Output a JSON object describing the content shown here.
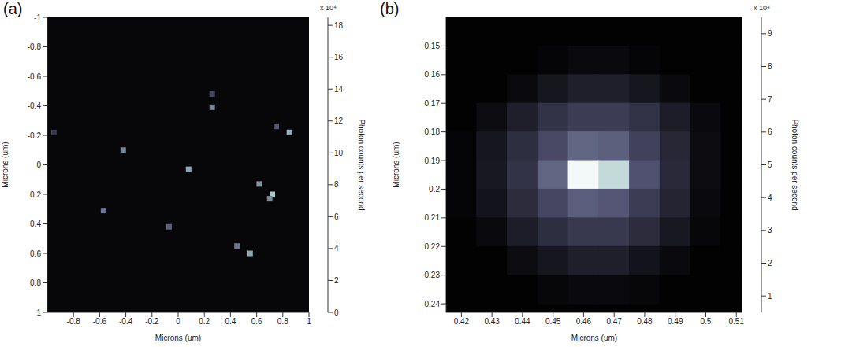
{
  "chart_data": [
    {
      "type": "heatmap",
      "panel": "(a)",
      "xlabel": "Microns (um)",
      "ylabel": "Microns (um)",
      "xlim": [
        -1,
        1
      ],
      "ylim": [
        -1,
        1
      ],
      "xticks": [
        -0.8,
        -0.6,
        -0.4,
        -0.2,
        0,
        0.2,
        0.4,
        0.6,
        0.8,
        1
      ],
      "yticks": [
        -1,
        -0.8,
        -0.6,
        -0.4,
        -0.2,
        0,
        0.2,
        0.4,
        0.6,
        0.8,
        1
      ],
      "grid": false,
      "background": 0.6,
      "spots": [
        {
          "x": -0.95,
          "y": -0.22,
          "value": 5
        },
        {
          "x": 0.26,
          "y": -0.48,
          "value": 6
        },
        {
          "x": 0.26,
          "y": -0.39,
          "value": 10
        },
        {
          "x": 0.75,
          "y": -0.26,
          "value": 7
        },
        {
          "x": 0.85,
          "y": -0.22,
          "value": 12
        },
        {
          "x": -0.42,
          "y": -0.1,
          "value": 10
        },
        {
          "x": 0.08,
          "y": 0.03,
          "value": 12
        },
        {
          "x": 0.62,
          "y": 0.13,
          "value": 11
        },
        {
          "x": 0.72,
          "y": 0.2,
          "value": 14
        },
        {
          "x": 0.7,
          "y": 0.23,
          "value": 10
        },
        {
          "x": -0.57,
          "y": 0.31,
          "value": 9
        },
        {
          "x": -0.07,
          "y": 0.42,
          "value": 8
        },
        {
          "x": 0.45,
          "y": 0.55,
          "value": 9
        },
        {
          "x": 0.55,
          "y": 0.6,
          "value": 12
        }
      ],
      "colorbar": {
        "range": [
          0,
          18.5
        ],
        "ticks": [
          0,
          2,
          4,
          6,
          8,
          10,
          12,
          14,
          16,
          18
        ],
        "label": "Photon counts per second",
        "multiplier": "x 10⁴"
      }
    },
    {
      "type": "heatmap",
      "panel": "(b)",
      "xlabel": "Microns (um)",
      "ylabel": "Microns (um)",
      "xlim": [
        0.415,
        0.512
      ],
      "ylim": [
        0.14,
        0.243
      ],
      "xticks": [
        0.42,
        0.43,
        0.44,
        0.45,
        0.46,
        0.47,
        0.48,
        0.49,
        0.5,
        0.51
      ],
      "yticks": [
        0.15,
        0.16,
        0.17,
        0.18,
        0.19,
        0.2,
        0.21,
        0.22,
        0.23,
        0.24
      ],
      "grid": false,
      "background": 0.6,
      "cells": {
        "x": [
          0.42,
          0.43,
          0.44,
          0.45,
          0.46,
          0.47,
          0.48,
          0.49,
          0.5,
          0.51
        ],
        "y": [
          0.145,
          0.155,
          0.165,
          0.175,
          0.185,
          0.195,
          0.205,
          0.215,
          0.225,
          0.235
        ],
        "values": [
          [
            0.6,
            0.6,
            0.6,
            0.6,
            0.6,
            0.6,
            0.6,
            0.6,
            0.6,
            0.6
          ],
          [
            0.6,
            0.6,
            0.6,
            0.7,
            0.9,
            0.9,
            0.7,
            0.6,
            0.6,
            0.6
          ],
          [
            0.6,
            0.6,
            0.9,
            1.4,
            1.8,
            1.8,
            1.4,
            0.9,
            0.6,
            0.6
          ],
          [
            0.6,
            1.0,
            1.8,
            2.6,
            3.0,
            3.0,
            2.6,
            1.7,
            0.9,
            0.6
          ],
          [
            0.7,
            1.4,
            2.4,
            3.5,
            4.5,
            4.3,
            3.2,
            2.1,
            1.0,
            0.6
          ],
          [
            0.7,
            1.5,
            2.6,
            4.5,
            9.2,
            8.0,
            3.8,
            2.2,
            1.0,
            0.6
          ],
          [
            0.7,
            1.3,
            2.3,
            3.4,
            4.2,
            4.0,
            3.0,
            2.0,
            0.9,
            0.6
          ],
          [
            0.6,
            0.9,
            1.7,
            2.4,
            2.8,
            2.8,
            2.3,
            1.5,
            0.8,
            0.6
          ],
          [
            0.6,
            0.6,
            1.0,
            1.4,
            1.8,
            1.8,
            1.3,
            0.9,
            0.6,
            0.6
          ],
          [
            0.6,
            0.6,
            0.6,
            0.8,
            0.9,
            0.9,
            0.8,
            0.6,
            0.6,
            0.6
          ]
        ]
      },
      "colorbar": {
        "range": [
          0.5,
          9.5
        ],
        "ticks": [
          1,
          2,
          3,
          4,
          5,
          6,
          7,
          8,
          9
        ],
        "label": "Photon counts per second",
        "multiplier": "x 10⁴"
      }
    }
  ]
}
